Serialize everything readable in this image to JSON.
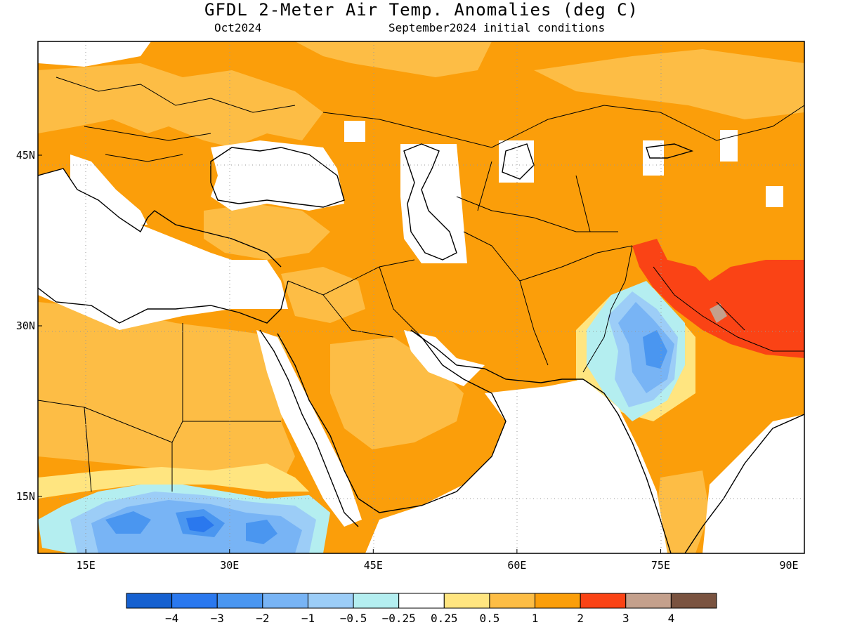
{
  "header": {
    "title": "GFDL 2-Meter Air Temp. Anomalies (deg C)",
    "period": "Oct2024",
    "init": "September2024 initial conditions"
  },
  "axes": {
    "lon_range": [
      10,
      90
    ],
    "lat_range": [
      10,
      55
    ],
    "x_ticks": [
      {
        "value": 15,
        "label": "15E"
      },
      {
        "value": 30,
        "label": "30E"
      },
      {
        "value": 45,
        "label": "45E"
      },
      {
        "value": 60,
        "label": "60E"
      },
      {
        "value": 75,
        "label": "75E"
      },
      {
        "value": 90,
        "label": "90E"
      }
    ],
    "y_ticks": [
      {
        "value": 45,
        "label": "45N"
      },
      {
        "value": 30,
        "label": "30N"
      },
      {
        "value": 15,
        "label": "15N"
      }
    ]
  },
  "colorbar": {
    "bins": [
      {
        "color": "#1560d0"
      },
      {
        "color": "#2a78ee"
      },
      {
        "color": "#4a96f0"
      },
      {
        "color": "#78b4f5"
      },
      {
        "color": "#9ccdf7"
      },
      {
        "color": "#b4eef0"
      },
      {
        "color": "#ffffff"
      },
      {
        "color": "#ffe580"
      },
      {
        "color": "#fdbd45"
      },
      {
        "color": "#fb9e0a"
      },
      {
        "color": "#fa4315"
      },
      {
        "color": "#c4a08c"
      },
      {
        "color": "#7a5340"
      }
    ],
    "labels": [
      "-4",
      "-3",
      "-2",
      "-1",
      "-0.5",
      "-0.25",
      "0.25",
      "0.5",
      "1",
      "2",
      "3",
      "4"
    ]
  },
  "colors": {
    "warm_1_2": "#fb9e0a",
    "warm_05_1": "#fdbd45",
    "warm_025_05": "#ffe580",
    "hot_2_3": "#fa4315",
    "hot_3_4": "#c4a08c",
    "cool_025": "#b4eef0",
    "cool_05_1": "#9ccdf7",
    "cool_1_2": "#78b4f5",
    "cool_2_3": "#4a96f0",
    "cool_3_4": "#2a78ee",
    "neutral": "#ffffff",
    "coast": "#000000"
  }
}
